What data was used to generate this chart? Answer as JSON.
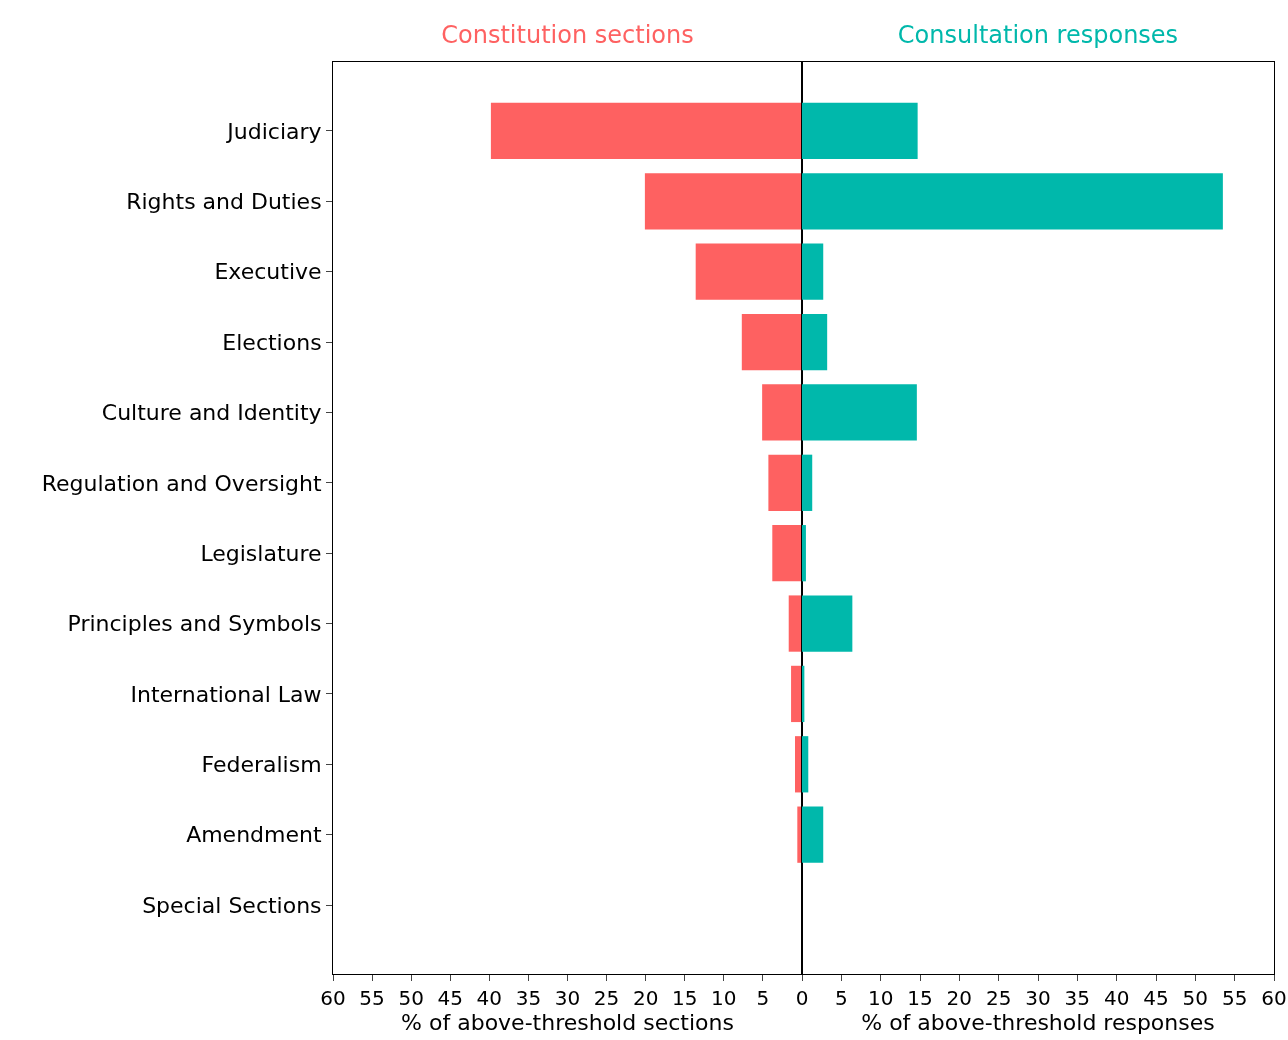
{
  "chart_data": [
    {
      "type": "bar",
      "orientation": "horizontal",
      "title": "Constitution sections",
      "xlabel": "% of above-threshold sections",
      "categories": [
        "Judiciary",
        "Rights and Duties",
        "Executive",
        "Elections",
        "Culture and Identity",
        "Regulation and Oversight",
        "Legislature",
        "Principles and Symbols",
        "International Law",
        "Federalism",
        "Amendment",
        "Special Sections"
      ],
      "series": [
        {
          "color": "#fe6161",
          "values": [
            39.8,
            20.1,
            13.6,
            7.7,
            5.1,
            4.3,
            3.8,
            1.7,
            1.4,
            0.9,
            0.6,
            0
          ]
        }
      ],
      "xlim": [
        60,
        0
      ],
      "xticks": [
        60,
        55,
        50,
        45,
        40,
        35,
        30,
        25,
        20,
        15,
        10,
        5,
        {
          "value": 0,
          "label": null
        }
      ],
      "grid": false
    },
    {
      "type": "bar",
      "orientation": "horizontal",
      "title": "Consultation responses",
      "xlabel": "% of above-threshold responses",
      "categories": [
        null,
        null,
        null,
        null,
        null,
        null,
        null,
        null,
        null,
        null,
        null,
        null
      ],
      "series": [
        {
          "color": "#00b8ab",
          "values": [
            14.7,
            53.5,
            2.7,
            3.2,
            14.6,
            1.3,
            0.5,
            6.4,
            0.3,
            0.8,
            2.7,
            0
          ]
        }
      ],
      "xlim": [
        0,
        60
      ],
      "xticks": [
        0,
        5,
        10,
        15,
        20,
        25,
        30,
        35,
        40,
        45,
        50,
        55,
        60
      ],
      "tick_labels": "x",
      "grid": false
    }
  ]
}
